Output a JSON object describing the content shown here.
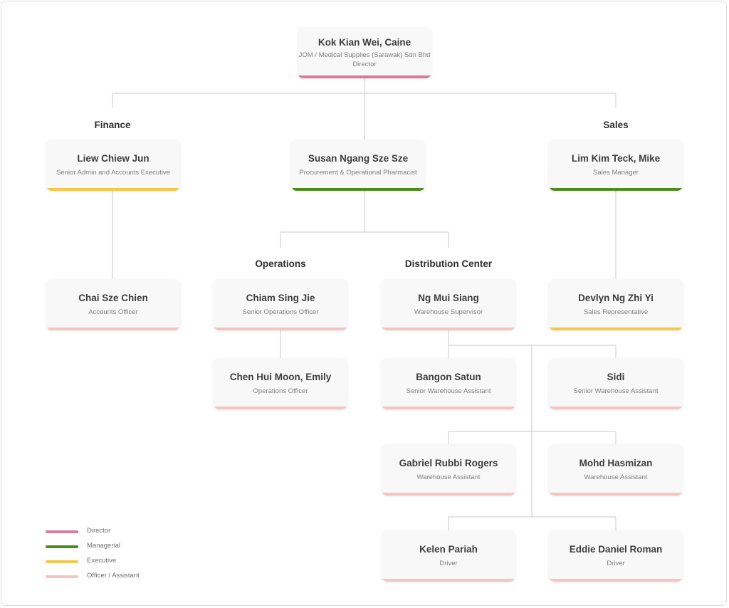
{
  "colors": {
    "director": "#d97b9e",
    "managerial": "#4e8a1f",
    "executive": "#f5c84c",
    "officer": "#f2c4c4"
  },
  "departments": {
    "finance": "Finance",
    "sales": "Sales",
    "operations": "Operations",
    "distribution": "Distribution Center"
  },
  "people": {
    "director": {
      "name": "Kok Kian Wei, Caine",
      "company": "JOM / Medical Supplies (Sarawak) Sdn Bhd",
      "role": "Director",
      "level": "director"
    },
    "finance_lead": {
      "name": "Liew Chiew Jun",
      "role": "Senior Admin and Accounts Executive",
      "level": "executive"
    },
    "procurement": {
      "name": "Susan Ngang Sze Sze",
      "role": "Procurement & Operational Pharmacist",
      "level": "managerial"
    },
    "sales_manager": {
      "name": "Lim Kim Teck, Mike",
      "role": "Sales Manager",
      "level": "managerial"
    },
    "accounts_officer": {
      "name": "Chai Sze Chien",
      "role": "Accounts Officer",
      "level": "officer"
    },
    "senior_ops": {
      "name": "Chiam Sing Jie",
      "role": "Senior Operations Officer",
      "level": "officer"
    },
    "warehouse_supervisor": {
      "name": "Ng Mui Siang",
      "role": "Warehouse Supervisor",
      "level": "officer"
    },
    "sales_rep": {
      "name": "Devlyn Ng Zhi Yi",
      "role": "Sales Representative",
      "level": "executive"
    },
    "ops_officer": {
      "name": "Chen Hui Moon, Emily",
      "role": "Operations Officer",
      "level": "officer"
    },
    "bangon": {
      "name": "Bangon Satun",
      "role": "Senior Warehouse Assistant",
      "level": "officer"
    },
    "sidi": {
      "name": "Sidi",
      "role": "Senior Warehouse Assistant",
      "level": "officer"
    },
    "gabriel": {
      "name": "Gabriel Rubbi Rogers",
      "role": "Warehouse Assistant",
      "level": "officer"
    },
    "hasmizan": {
      "name": "Mohd Hasmizan",
      "role": "Warehouse Assistant",
      "level": "officer"
    },
    "kelen": {
      "name": "Kelen Pariah",
      "role": "Driver",
      "level": "officer"
    },
    "eddie": {
      "name": "Eddie Daniel Roman",
      "role": "Driver",
      "level": "officer"
    }
  },
  "legend": [
    {
      "label": "Director",
      "level": "director"
    },
    {
      "label": "Managerial",
      "level": "managerial"
    },
    {
      "label": "Executive",
      "level": "executive"
    },
    {
      "label": "Officer / Assistant",
      "level": "officer"
    }
  ]
}
